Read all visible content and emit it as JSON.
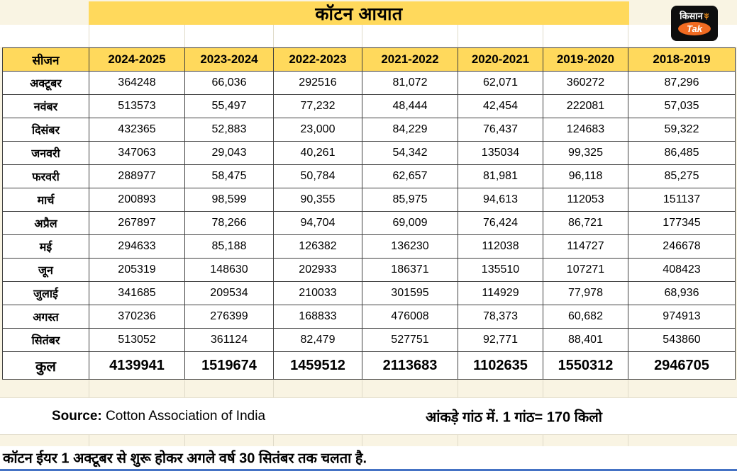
{
  "title": "कॉटन आयात",
  "logo": {
    "kisan": "किसान",
    "tak": "Tak"
  },
  "chart_data": {
    "type": "table",
    "title": "कॉटन आयात",
    "headers": [
      "सीजन",
      "2024-2025",
      "2023-2024",
      "2022-2023",
      "2021-2022",
      "2020-2021",
      "2019-2020",
      "2018-2019"
    ],
    "rows": [
      [
        "अक्टूबर",
        "364248",
        "66,036",
        "292516",
        "81,072",
        "62,071",
        "360272",
        "87,296"
      ],
      [
        "नवंबर",
        "513573",
        "55,497",
        "77,232",
        "48,444",
        "42,454",
        "222081",
        "57,035"
      ],
      [
        "दिसंबर",
        "432365",
        "52,883",
        "23,000",
        "84,229",
        "76,437",
        "124683",
        "59,322"
      ],
      [
        "जनवरी",
        "347063",
        "29,043",
        "40,261",
        "54,342",
        "135034",
        "99,325",
        "86,485"
      ],
      [
        "फरवरी",
        "288977",
        "58,475",
        "50,784",
        "62,657",
        "81,981",
        "96,118",
        "85,275"
      ],
      [
        "मार्च",
        "200893",
        "98,599",
        "90,355",
        "85,975",
        "94,613",
        "112053",
        "151137"
      ],
      [
        "अप्रैल",
        "267897",
        "78,266",
        "94,704",
        "69,009",
        "76,424",
        "86,721",
        "177345"
      ],
      [
        "मई",
        "294633",
        "85,188",
        "126382",
        "136230",
        "112038",
        "114727",
        "246678"
      ],
      [
        "जून",
        "205319",
        "148630",
        "202933",
        "186371",
        "135510",
        "107271",
        "408423"
      ],
      [
        "जुलाई",
        "341685",
        "209534",
        "210033",
        "301595",
        "114929",
        "77,978",
        "68,936"
      ],
      [
        "अगस्त",
        "370236",
        "276399",
        "168833",
        "476008",
        "78,373",
        "60,682",
        "974913"
      ],
      [
        "सितंबर",
        "513052",
        "361124",
        "82,479",
        "527751",
        "92,771",
        "88,401",
        "543860"
      ]
    ],
    "total": [
      "कुल",
      "4139941",
      "1519674",
      "1459512",
      "2113683",
      "1102635",
      "1550312",
      "2946705"
    ]
  },
  "footer": {
    "source_label": "Source:",
    "source_text": "Cotton Association of India",
    "unit_note": "आंकड़े गांठ में. 1 गांठ= 170 किलो",
    "bottom_note": "कॉटन ईयर 1 अक्टूबर से शुरू होकर अगले वर्ष 30 सितंबर तक चलता है."
  },
  "colors": {
    "header_bg": "#FFD95C",
    "accent_blue": "#4472C4",
    "logo_orange": "#F26B21",
    "page_bg": "#F9F4E3"
  }
}
